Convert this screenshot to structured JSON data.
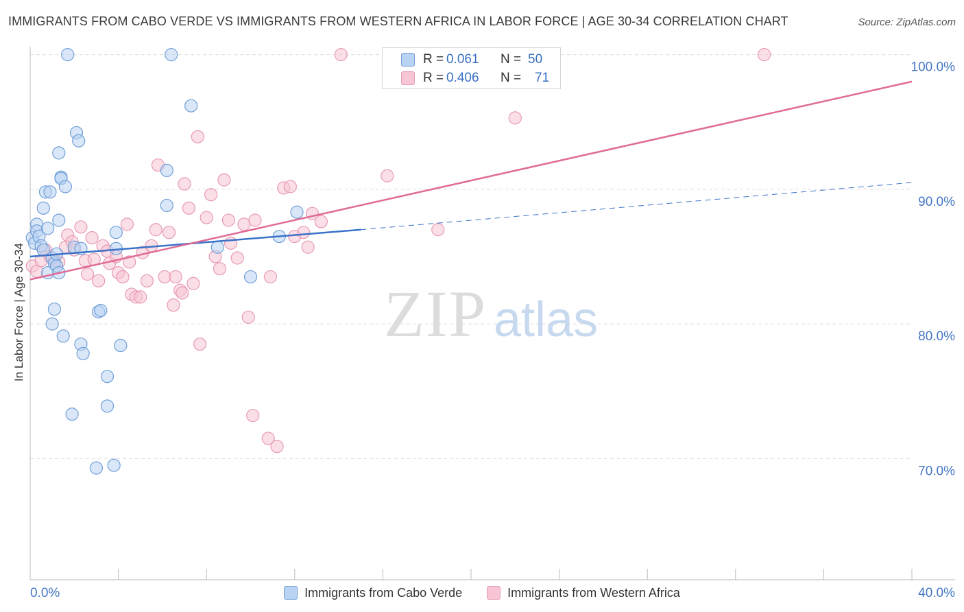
{
  "title": "IMMIGRANTS FROM CABO VERDE VS IMMIGRANTS FROM WESTERN AFRICA IN LABOR FORCE | AGE 30-34 CORRELATION CHART",
  "source": "Source: ZipAtlas.com",
  "watermark": {
    "zip": "ZIP",
    "atlas": "atlas"
  },
  "legend_top": {
    "rows": [
      {
        "r_label": "R =",
        "r_value": "0.061",
        "n_label": "N =",
        "n_value": "50"
      },
      {
        "r_label": "R =",
        "r_value": "0.406",
        "n_label": "N =",
        "n_value": "71"
      }
    ]
  },
  "colors": {
    "blue_fill": "#b9d3f3",
    "blue_stroke": "#6f9fd8",
    "blue_line": "#3a72c8",
    "pink_fill": "#f7c5d4",
    "pink_stroke": "#e79ab4",
    "pink_line": "#e06b96",
    "axis_label": "#4477c4",
    "grid": "#dddddd"
  },
  "chart_data": {
    "type": "scatter",
    "title": "IMMIGRANTS FROM CABO VERDE VS IMMIGRANTS FROM WESTERN AFRICA IN LABOR FORCE | AGE 30-34 CORRELATION CHART",
    "xlabel": "",
    "ylabel": "In Labor Force | Age 30-34",
    "xlim": [
      0,
      40
    ],
    "ylim": [
      61,
      101
    ],
    "x_tick_labels": [
      "0.0%",
      "40.0%"
    ],
    "y_ticks": [
      70,
      80,
      90,
      100
    ],
    "y_tick_labels": [
      "70.0%",
      "80.0%",
      "90.0%",
      "100.0%"
    ],
    "grid": true,
    "legend_position": "bottom",
    "series": [
      {
        "name": "Immigrants from Cabo Verde",
        "R": 0.061,
        "N": 50,
        "trend": {
          "x": [
            0,
            15
          ],
          "y": [
            85.0,
            87.0
          ],
          "dashed_to_x": 40,
          "dashed_end_y": 90.5
        },
        "points": [
          [
            0.1,
            86.4
          ],
          [
            0.2,
            86.0
          ],
          [
            0.3,
            87.4
          ],
          [
            0.3,
            86.9
          ],
          [
            0.4,
            86.5
          ],
          [
            0.5,
            85.8
          ],
          [
            0.6,
            85.5
          ],
          [
            0.6,
            88.6
          ],
          [
            0.7,
            89.8
          ],
          [
            0.8,
            87.1
          ],
          [
            0.8,
            83.8
          ],
          [
            0.9,
            89.8
          ],
          [
            1.0,
            84.9
          ],
          [
            1.0,
            80.0
          ],
          [
            1.1,
            84.5
          ],
          [
            1.1,
            81.1
          ],
          [
            1.2,
            85.2
          ],
          [
            1.2,
            84.3
          ],
          [
            1.3,
            87.7
          ],
          [
            1.3,
            83.8
          ],
          [
            1.3,
            92.7
          ],
          [
            1.4,
            90.9
          ],
          [
            1.4,
            90.8
          ],
          [
            1.5,
            79.1
          ],
          [
            1.6,
            90.2
          ],
          [
            1.7,
            100.0
          ],
          [
            1.9,
            73.3
          ],
          [
            2.0,
            85.7
          ],
          [
            2.1,
            94.2
          ],
          [
            2.2,
            93.6
          ],
          [
            2.3,
            78.5
          ],
          [
            2.4,
            77.8
          ],
          [
            3.1,
            80.9
          ],
          [
            3.2,
            81.0
          ],
          [
            3.5,
            76.1
          ],
          [
            3.5,
            73.9
          ],
          [
            3.8,
            69.5
          ],
          [
            3.9,
            85.6
          ],
          [
            3.9,
            86.8
          ],
          [
            4.1,
            78.4
          ],
          [
            3.0,
            69.3
          ],
          [
            6.2,
            91.4
          ],
          [
            6.2,
            88.8
          ],
          [
            6.4,
            100.0
          ],
          [
            7.3,
            96.2
          ],
          [
            8.5,
            85.7
          ],
          [
            10.0,
            83.5
          ],
          [
            11.3,
            86.5
          ],
          [
            12.1,
            88.3
          ],
          [
            2.3,
            85.6
          ]
        ]
      },
      {
        "name": "Immigrants from Western Africa",
        "R": 0.406,
        "N": 71,
        "trend": {
          "x": [
            0,
            40
          ],
          "y": [
            83.3,
            98.0
          ]
        },
        "points": [
          [
            0.1,
            84.3
          ],
          [
            0.3,
            83.9
          ],
          [
            0.5,
            84.7
          ],
          [
            0.7,
            85.5
          ],
          [
            0.9,
            85.0
          ],
          [
            1.1,
            84.7
          ],
          [
            1.3,
            84.6
          ],
          [
            1.6,
            85.7
          ],
          [
            1.7,
            86.6
          ],
          [
            1.9,
            86.1
          ],
          [
            2.0,
            85.5
          ],
          [
            2.3,
            87.2
          ],
          [
            2.5,
            84.7
          ],
          [
            2.6,
            83.7
          ],
          [
            2.8,
            86.4
          ],
          [
            2.9,
            84.8
          ],
          [
            3.1,
            83.2
          ],
          [
            3.3,
            85.8
          ],
          [
            3.5,
            85.4
          ],
          [
            3.6,
            84.5
          ],
          [
            3.9,
            85.0
          ],
          [
            4.0,
            83.8
          ],
          [
            4.2,
            83.5
          ],
          [
            4.4,
            87.4
          ],
          [
            4.5,
            84.6
          ],
          [
            4.6,
            82.2
          ],
          [
            4.8,
            82.0
          ],
          [
            5.0,
            82.0
          ],
          [
            5.1,
            85.3
          ],
          [
            5.3,
            83.2
          ],
          [
            5.5,
            85.8
          ],
          [
            5.7,
            87.0
          ],
          [
            5.8,
            91.8
          ],
          [
            6.1,
            83.5
          ],
          [
            6.3,
            86.8
          ],
          [
            6.5,
            81.4
          ],
          [
            6.6,
            83.5
          ],
          [
            6.8,
            82.5
          ],
          [
            6.9,
            82.3
          ],
          [
            7.0,
            90.4
          ],
          [
            7.2,
            88.6
          ],
          [
            7.4,
            83.0
          ],
          [
            7.6,
            93.9
          ],
          [
            7.7,
            78.5
          ],
          [
            8.0,
            87.9
          ],
          [
            8.2,
            89.6
          ],
          [
            8.4,
            85.0
          ],
          [
            8.6,
            84.1
          ],
          [
            8.8,
            90.7
          ],
          [
            9.0,
            87.7
          ],
          [
            9.1,
            86.0
          ],
          [
            9.4,
            84.9
          ],
          [
            9.7,
            87.4
          ],
          [
            9.9,
            80.5
          ],
          [
            10.1,
            73.2
          ],
          [
            10.2,
            87.7
          ],
          [
            10.8,
            71.5
          ],
          [
            10.9,
            83.5
          ],
          [
            11.2,
            70.9
          ],
          [
            11.5,
            90.1
          ],
          [
            11.8,
            90.2
          ],
          [
            12.0,
            86.5
          ],
          [
            12.4,
            86.8
          ],
          [
            12.6,
            85.7
          ],
          [
            12.8,
            88.2
          ],
          [
            13.2,
            87.6
          ],
          [
            14.1,
            100.0
          ],
          [
            16.2,
            91.0
          ],
          [
            18.5,
            87.0
          ],
          [
            22.0,
            95.3
          ],
          [
            33.3,
            100.0
          ]
        ]
      }
    ]
  }
}
